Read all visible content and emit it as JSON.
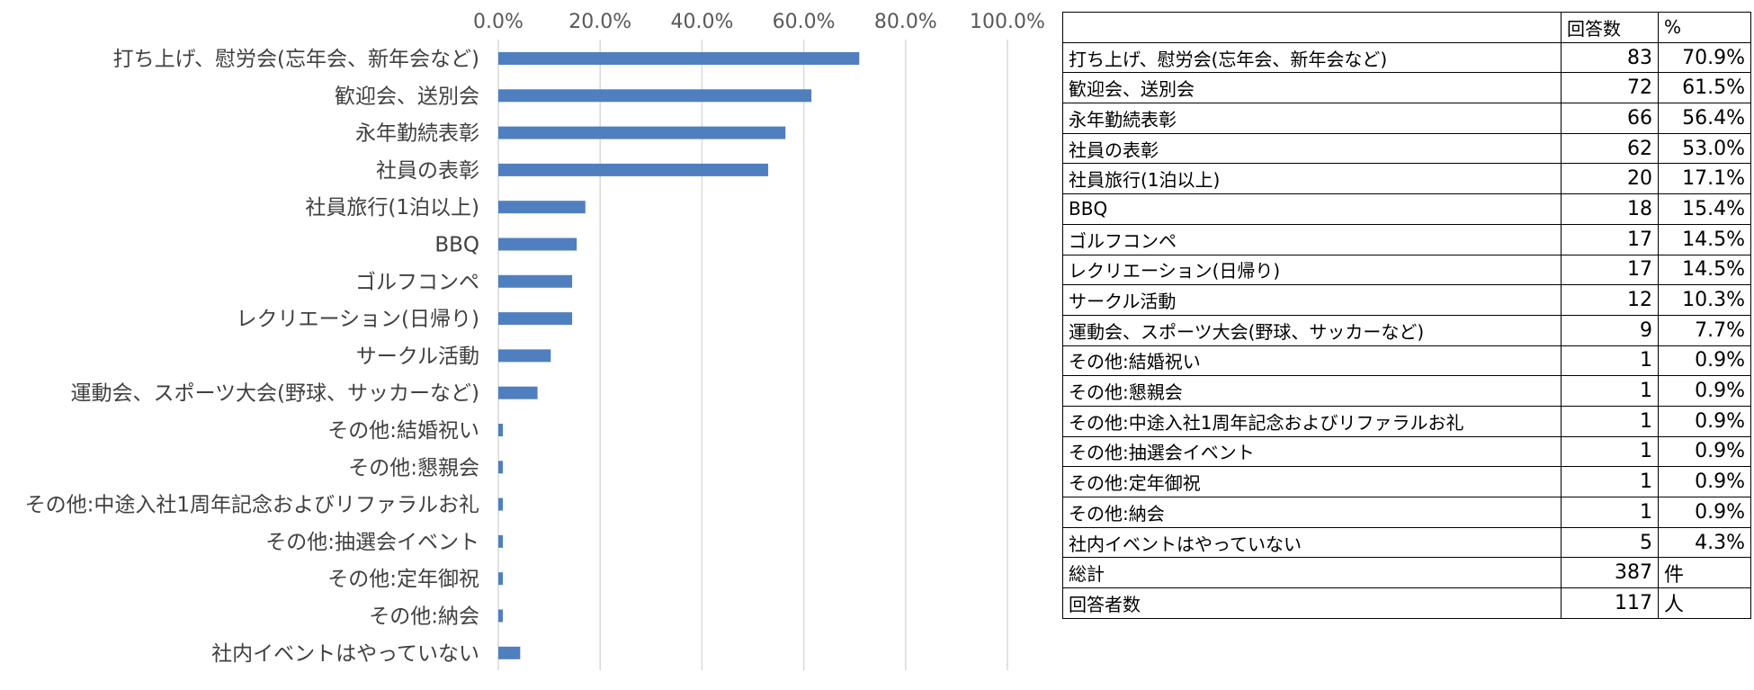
{
  "chart_data": {
    "type": "bar",
    "orientation": "horizontal",
    "bar_color": "#4f7fbf",
    "grid": true,
    "xlim": [
      0,
      100
    ],
    "x_ticks": [
      "0.0%",
      "20.0%",
      "40.0%",
      "60.0%",
      "80.0%",
      "100.0%"
    ],
    "x_tick_values": [
      0,
      20,
      40,
      60,
      80,
      100
    ],
    "categories": [
      "打ち上げ、慰労会(忘年会、新年会など)",
      "歓迎会、送別会",
      "永年勤続表彰",
      "社員の表彰",
      "社員旅行(1泊以上)",
      "BBQ",
      "ゴルフコンペ",
      "レクリエーション(日帰り)",
      "サークル活動",
      "運動会、スポーツ大会(野球、サッカーなど)",
      "その他:結婚祝い",
      "その他:懇親会",
      "その他:中途入社1周年記念およびリファラルお礼",
      "その他:抽選会イベント",
      "その他:定年御祝",
      "その他:納会",
      "社内イベントはやっていない"
    ],
    "values": [
      70.9,
      61.5,
      56.4,
      53.0,
      17.1,
      15.4,
      14.5,
      14.5,
      10.3,
      7.7,
      0.9,
      0.9,
      0.9,
      0.9,
      0.9,
      0.9,
      4.3
    ]
  },
  "table": {
    "header": {
      "name": "",
      "count": "回答数",
      "pct": "%"
    },
    "rows": [
      {
        "name": "打ち上げ、慰労会(忘年会、新年会など)",
        "count": "83",
        "pct": "70.9%"
      },
      {
        "name": "歓迎会、送別会",
        "count": "72",
        "pct": "61.5%"
      },
      {
        "name": "永年勤続表彰",
        "count": "66",
        "pct": "56.4%"
      },
      {
        "name": "社員の表彰",
        "count": "62",
        "pct": "53.0%"
      },
      {
        "name": "社員旅行(1泊以上)",
        "count": "20",
        "pct": "17.1%"
      },
      {
        "name": "BBQ",
        "count": "18",
        "pct": "15.4%"
      },
      {
        "name": "ゴルフコンペ",
        "count": "17",
        "pct": "14.5%"
      },
      {
        "name": "レクリエーション(日帰り)",
        "count": "17",
        "pct": "14.5%"
      },
      {
        "name": "サークル活動",
        "count": "12",
        "pct": "10.3%"
      },
      {
        "name": "運動会、スポーツ大会(野球、サッカーなど)",
        "count": "9",
        "pct": "7.7%"
      },
      {
        "name": "その他:結婚祝い",
        "count": "1",
        "pct": "0.9%"
      },
      {
        "name": "その他:懇親会",
        "count": "1",
        "pct": "0.9%"
      },
      {
        "name": "その他:中途入社1周年記念およびリファラルお礼",
        "count": "1",
        "pct": "0.9%"
      },
      {
        "name": "その他:抽選会イベント",
        "count": "1",
        "pct": "0.9%"
      },
      {
        "name": "その他:定年御祝",
        "count": "1",
        "pct": "0.9%"
      },
      {
        "name": "その他:納会",
        "count": "1",
        "pct": "0.9%"
      },
      {
        "name": "社内イベントはやっていない",
        "count": "5",
        "pct": "4.3%"
      }
    ],
    "total": {
      "name": "総計",
      "count": "387",
      "unit": "件"
    },
    "respondents": {
      "name": "回答者数",
      "count": "117",
      "unit": "人"
    }
  }
}
